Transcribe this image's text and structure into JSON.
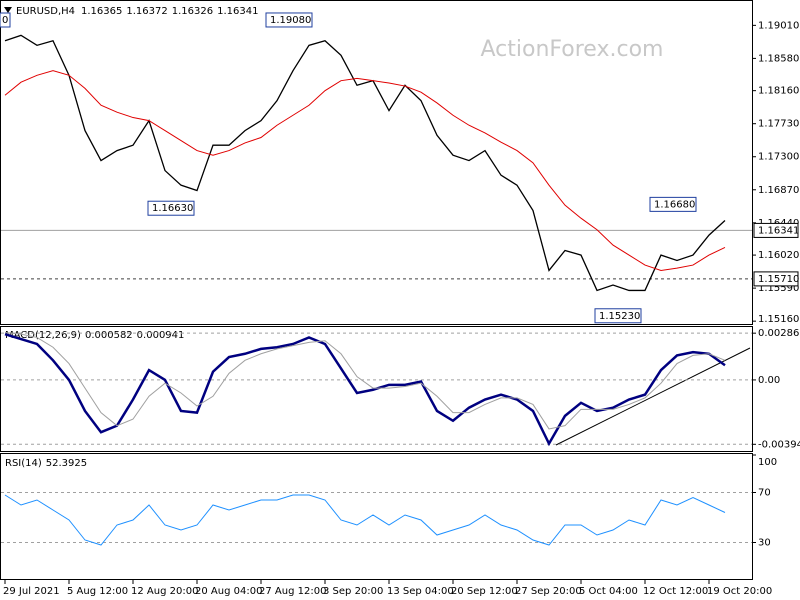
{
  "chart_data": [
    {
      "type": "line",
      "title": "EURUSD,H4",
      "ohlc": [
        1.16365,
        1.16372,
        1.16326,
        1.16341
      ],
      "watermark": "ActionForex.com",
      "corner_label": "0",
      "categories": [
        "29 Jul 2021",
        null,
        null,
        null,
        "5 Aug 12:00",
        null,
        null,
        null,
        "12 Aug 20:00",
        null,
        null,
        null,
        "20 Aug 04:00",
        null,
        null,
        null,
        "27 Aug 12:00",
        null,
        null,
        null,
        "3 Sep 20:00",
        null,
        null,
        null,
        "13 Sep 04:00",
        null,
        null,
        null,
        "20 Sep 12:00",
        null,
        null,
        null,
        "27 Sep 20:00",
        null,
        null,
        null,
        "5 Oct 04:00",
        null,
        null,
        null,
        "12 Oct 12:00",
        null,
        null,
        null,
        "19 Oct 20:00",
        null
      ],
      "series": [
        {
          "name": "EURUSD",
          "color": "#000000",
          "values": [
            1.1881,
            1.1888,
            1.1875,
            1.1881,
            1.1836,
            1.1764,
            1.1725,
            1.1738,
            1.1745,
            1.1777,
            1.1712,
            1.1693,
            1.1686,
            1.1745,
            1.1745,
            1.1764,
            1.1777,
            1.1803,
            1.1842,
            1.1875,
            1.1881,
            1.1862,
            1.1823,
            1.1829,
            1.179,
            1.1823,
            1.1803,
            1.1758,
            1.1732,
            1.1725,
            1.1738,
            1.1706,
            1.1693,
            1.166,
            1.1582,
            1.1608,
            1.1602,
            1.1556,
            1.1563,
            1.1556,
            1.1556,
            1.1602,
            1.1595,
            1.1602,
            1.1628,
            1.1647
          ]
        },
        {
          "name": "MA",
          "color": "#e00000",
          "values": [
            1.181,
            1.1827,
            1.1836,
            1.1842,
            1.1836,
            1.1819,
            1.1797,
            1.1788,
            1.1781,
            1.1777,
            1.1764,
            1.1751,
            1.1738,
            1.1732,
            1.1738,
            1.1748,
            1.1755,
            1.1771,
            1.1784,
            1.1797,
            1.1816,
            1.1829,
            1.1832,
            1.1829,
            1.1826,
            1.1822,
            1.1814,
            1.18,
            1.1784,
            1.1771,
            1.1761,
            1.1749,
            1.1738,
            1.1722,
            1.1693,
            1.1667,
            1.165,
            1.1635,
            1.1615,
            1.1602,
            1.1589,
            1.1582,
            1.1585,
            1.1589,
            1.1602,
            1.1612
          ]
        }
      ],
      "ylim": [
        1.1511,
        1.1934
      ],
      "yticks": [
        {
          "value": 1.1901,
          "label": "1.19010"
        },
        {
          "value": 1.1858,
          "label": "1.18580"
        },
        {
          "value": 1.1816,
          "label": "1.18160"
        },
        {
          "value": 1.1773,
          "label": "1.17730"
        },
        {
          "value": 1.173,
          "label": "1.17300"
        },
        {
          "value": 1.1687,
          "label": "1.16870"
        },
        {
          "value": 1.1644,
          "label": "1.16440"
        },
        {
          "value": 1.1602,
          "label": "1.16020"
        },
        {
          "value": 1.1559,
          "label": "1.15590"
        },
        {
          "value": 1.1516,
          "label": "1.15160"
        }
      ],
      "current_price": 1.16341,
      "level": {
        "value": 1.1571,
        "label": "1.15710"
      },
      "annotations": [
        {
          "value": 1.1908,
          "label": "1.19080"
        },
        {
          "value": 1.1663,
          "label": "1.16630"
        },
        {
          "value": 1.1668,
          "label": "1.16680"
        },
        {
          "value": 1.1523,
          "label": "1.15230"
        }
      ]
    },
    {
      "type": "line",
      "title": "MACD(12,26,9)",
      "header_values": [
        0.000582,
        0.000941
      ],
      "series": [
        {
          "name": "MACD",
          "color": "#000080",
          "values": [
            0.0028,
            0.0025,
            0.0022,
            0.0012,
            0,
            -0.0019,
            -0.0032,
            -0.0028,
            -0.0012,
            0.0006,
            0,
            -0.0019,
            -0.002,
            0.0005,
            0.0014,
            0.0016,
            0.0019,
            0.002,
            0.0022,
            0.0026,
            0.0022,
            0.0007,
            -0.0008,
            -0.0006,
            -0.0003,
            -0.0003,
            -0.0001,
            -0.0019,
            -0.0025,
            -0.0017,
            -0.0012,
            -0.0009,
            -0.0012,
            -0.0019,
            -0.0039,
            -0.0022,
            -0.0014,
            -0.0019,
            -0.0017,
            -0.0012,
            -0.0009,
            0.0006,
            0.0015,
            0.0017,
            0.0016,
            0.0009
          ]
        },
        {
          "name": "Signal",
          "color": "#a0a0a0",
          "values": [
            0.0029,
            0.0028,
            0.0026,
            0.002,
            0.001,
            -0.0005,
            -0.002,
            -0.0028,
            -0.0024,
            -0.001,
            -0.0002,
            -0.0008,
            -0.0016,
            -0.001,
            0.0004,
            0.0012,
            0.0016,
            0.0019,
            0.0021,
            0.0023,
            0.0024,
            0.0016,
            0.0002,
            -0.0005,
            -0.0005,
            -0.0004,
            -0.0002,
            -0.001,
            -0.002,
            -0.002,
            -0.0015,
            -0.0011,
            -0.0011,
            -0.0015,
            -0.003,
            -0.0028,
            -0.0018,
            -0.0018,
            -0.0018,
            -0.0015,
            -0.0011,
            -0.0002,
            0.001,
            0.0015,
            0.0016,
            0.0012
          ]
        }
      ],
      "ylim": [
        -0.00435,
        0.0033
      ],
      "yticks": [
        0.002861,
        {
          "value": 0,
          "label": "0.00"
        },
        -0.00394
      ]
    },
    {
      "type": "line",
      "title": "RSI(14)",
      "header_values": [
        52.3925
      ],
      "series": [
        {
          "name": "RSI",
          "color": "#1e90ff",
          "values": [
            68,
            60,
            64,
            56,
            48,
            32,
            28,
            44,
            48,
            60,
            44,
            40,
            44,
            60,
            56,
            60,
            64,
            64,
            68,
            68,
            64,
            48,
            44,
            52,
            44,
            52,
            48,
            36,
            40,
            44,
            52,
            44,
            40,
            32,
            28,
            44,
            44,
            36,
            40,
            48,
            44,
            64,
            60,
            66,
            60,
            54
          ]
        }
      ],
      "ylim": [
        0,
        100
      ],
      "yticks": [
        100,
        70,
        30
      ]
    }
  ]
}
